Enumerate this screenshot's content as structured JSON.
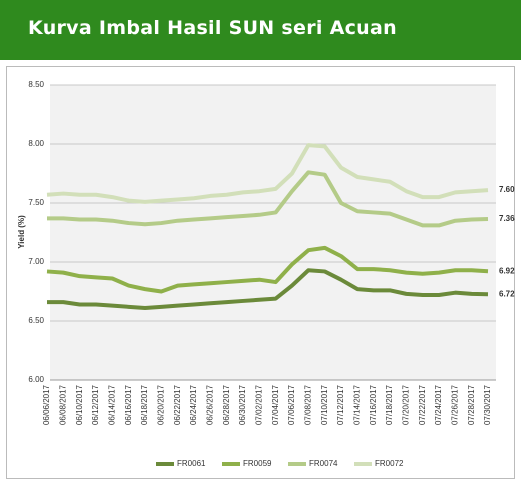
{
  "header": {
    "title": "Kurva Imbal Hasil SUN seri Acuan"
  },
  "chart_data": {
    "type": "line",
    "ylabel": "Yield (%)",
    "categories": [
      "06/06/2017",
      "06/08/2017",
      "06/10/2017",
      "06/12/2017",
      "06/14/2017",
      "06/16/2017",
      "06/18/2017",
      "06/20/2017",
      "06/22/2017",
      "06/24/2017",
      "06/26/2017",
      "06/28/2017",
      "06/30/2017",
      "07/02/2017",
      "07/04/2017",
      "07/06/2017",
      "07/08/2017",
      "07/10/2017",
      "07/12/2017",
      "07/14/2017",
      "07/16/2017",
      "07/18/2017",
      "07/20/2017",
      "07/22/2017",
      "07/24/2017",
      "07/26/2017",
      "07/28/2017",
      "07/30/2017"
    ],
    "series": [
      {
        "name": "FR0061",
        "color": "#6b8a3a",
        "values": [
          6.66,
          6.66,
          6.64,
          6.64,
          6.63,
          6.62,
          6.61,
          6.62,
          6.63,
          6.64,
          6.65,
          6.66,
          6.67,
          6.68,
          6.69,
          6.8,
          6.93,
          6.92,
          6.85,
          6.77,
          6.76,
          6.76,
          6.73,
          6.72,
          6.72,
          6.74,
          6.73,
          6.727
        ]
      },
      {
        "name": "FR0059",
        "color": "#8fb04a",
        "values": [
          6.92,
          6.91,
          6.88,
          6.87,
          6.86,
          6.8,
          6.77,
          6.75,
          6.8,
          6.81,
          6.82,
          6.83,
          6.84,
          6.85,
          6.83,
          6.98,
          7.1,
          7.12,
          7.05,
          6.94,
          6.94,
          6.93,
          6.91,
          6.9,
          6.91,
          6.93,
          6.93,
          6.922
        ]
      },
      {
        "name": "FR0074",
        "color": "#b4cb88",
        "values": [
          7.37,
          7.37,
          7.36,
          7.36,
          7.35,
          7.33,
          7.32,
          7.33,
          7.35,
          7.36,
          7.37,
          7.38,
          7.39,
          7.4,
          7.42,
          7.6,
          7.76,
          7.74,
          7.5,
          7.43,
          7.42,
          7.41,
          7.36,
          7.31,
          7.31,
          7.35,
          7.36,
          7.364
        ]
      },
      {
        "name": "FR0072",
        "color": "#d2dfb9",
        "values": [
          7.57,
          7.58,
          7.57,
          7.57,
          7.55,
          7.52,
          7.51,
          7.52,
          7.53,
          7.54,
          7.56,
          7.57,
          7.59,
          7.6,
          7.62,
          7.75,
          7.99,
          7.98,
          7.8,
          7.72,
          7.7,
          7.68,
          7.6,
          7.55,
          7.55,
          7.59,
          7.6,
          7.609
        ]
      }
    ],
    "ylim": [
      6.0,
      8.5
    ],
    "yticks": [
      {
        "value": 6.0,
        "label": "6.00"
      },
      {
        "value": 6.5,
        "label": "6.50"
      },
      {
        "value": 7.0,
        "label": "7.00"
      },
      {
        "value": 7.5,
        "label": "7.50"
      },
      {
        "value": 8.0,
        "label": "8.00"
      },
      {
        "value": 8.5,
        "label": "8.50"
      }
    ],
    "grid": true,
    "legend": "bottom"
  }
}
